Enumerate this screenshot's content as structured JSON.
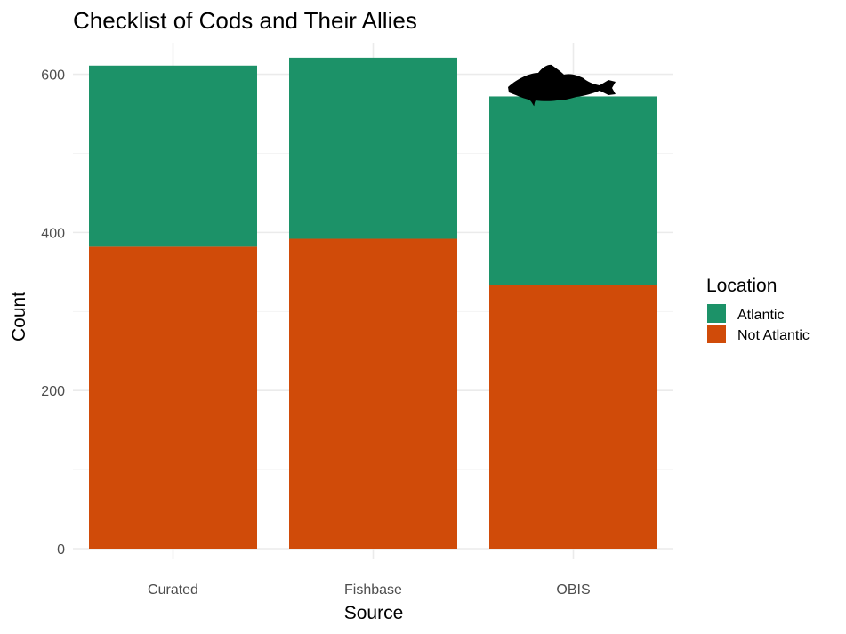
{
  "chart_data": {
    "type": "bar",
    "stacked": true,
    "title": "Checklist of Cods and Their Allies",
    "xlabel": "Source",
    "ylabel": "Count",
    "categories": [
      "Curated",
      "Fishbase",
      "OBIS"
    ],
    "series": [
      {
        "name": "Not Atlantic",
        "color": "#d04b09",
        "values": [
          382,
          392,
          334
        ]
      },
      {
        "name": "Atlantic",
        "color": "#1c9268",
        "values": [
          229,
          229,
          238
        ]
      }
    ],
    "ylim": [
      0,
      640
    ],
    "yticks": [
      0,
      200,
      400,
      600
    ],
    "grid": true,
    "legend": {
      "title": "Location",
      "placement": "right",
      "entries": [
        "Atlantic",
        "Not Atlantic"
      ]
    },
    "annotation": {
      "icon": "cod-fish-silhouette-icon",
      "category": "OBIS"
    }
  }
}
